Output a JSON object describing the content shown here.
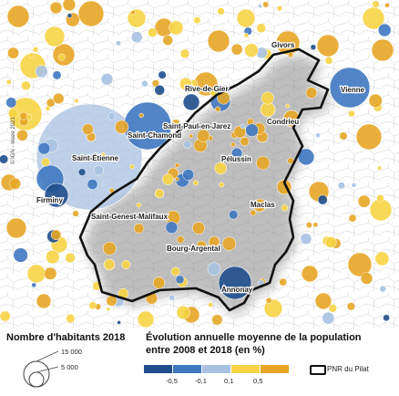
{
  "map": {
    "copyright": "© IGN - Insee 2021",
    "places": [
      {
        "id": "givors",
        "name": "Givors"
      },
      {
        "id": "vienne",
        "name": "Vienne"
      },
      {
        "id": "rive-de-gier",
        "name": "Rive-de-Gier"
      },
      {
        "id": "saint-paul-en-jarez",
        "name": "Saint-Paul-en-Jarez"
      },
      {
        "id": "condrieu",
        "name": "Condrieu"
      },
      {
        "id": "saint-chamond",
        "name": "Saint-Chamond"
      },
      {
        "id": "saint-etienne",
        "name": "Saint-Étienne"
      },
      {
        "id": "pelussin",
        "name": "Pélussin"
      },
      {
        "id": "firminy",
        "name": "Firminy"
      },
      {
        "id": "saint-genest-malifaux",
        "name": "Saint-Genest-Malifaux"
      },
      {
        "id": "maclas",
        "name": "Maclas"
      },
      {
        "id": "bourg-argental",
        "name": "Bourg-Argental"
      },
      {
        "id": "annonay",
        "name": "Annonay"
      }
    ]
  },
  "legend": {
    "size_title": "Nombre d'habitants 2018",
    "size_values": [
      "15 000",
      "5 000"
    ],
    "color_title_line1": "Évolution annuelle moyenne de la population",
    "color_title_line2": "entre 2008 et 2018 (en %)",
    "classes": [
      {
        "color": "#1f4e8c"
      },
      {
        "color": "#3f78c1"
      },
      {
        "color": "#a9c2e2"
      },
      {
        "color": "#f6d445"
      },
      {
        "color": "#e7a626"
      }
    ],
    "breaks": [
      "-0,5",
      "-0,1",
      "0,1",
      "0,5"
    ],
    "pnr_label": "PNR du Pilat"
  }
}
